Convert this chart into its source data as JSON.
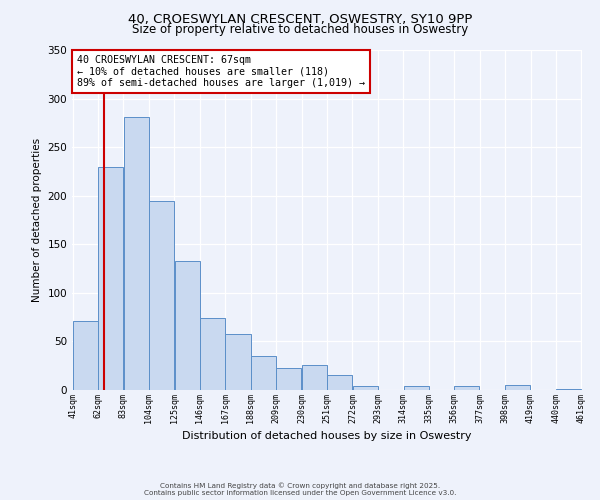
{
  "title_line1": "40, CROESWYLAN CRESCENT, OSWESTRY, SY10 9PP",
  "title_line2": "Size of property relative to detached houses in Oswestry",
  "xlabel": "Distribution of detached houses by size in Oswestry",
  "ylabel": "Number of detached properties",
  "bar_edges": [
    41,
    62,
    83,
    104,
    125,
    146,
    167,
    188,
    209,
    230,
    251,
    272,
    293,
    314,
    335,
    356,
    377,
    398,
    419,
    440,
    461
  ],
  "bar_heights": [
    71,
    230,
    281,
    195,
    133,
    74,
    58,
    35,
    23,
    26,
    15,
    4,
    0,
    4,
    0,
    4,
    0,
    5,
    0,
    1
  ],
  "bar_color": "#c9d9f0",
  "bar_edgecolor": "#5b8fc9",
  "property_line_x": 67,
  "annotation_title": "40 CROESWYLAN CRESCENT: 67sqm",
  "annotation_line1": "← 10% of detached houses are smaller (118)",
  "annotation_line2": "89% of semi-detached houses are larger (1,019) →",
  "annotation_box_facecolor": "#ffffff",
  "annotation_box_edgecolor": "#cc0000",
  "line_color": "#cc0000",
  "ylim": [
    0,
    350
  ],
  "yticks": [
    0,
    50,
    100,
    150,
    200,
    250,
    300,
    350
  ],
  "footer_line1": "Contains HM Land Registry data © Crown copyright and database right 2025.",
  "footer_line2": "Contains public sector information licensed under the Open Government Licence v3.0.",
  "background_color": "#eef2fb"
}
